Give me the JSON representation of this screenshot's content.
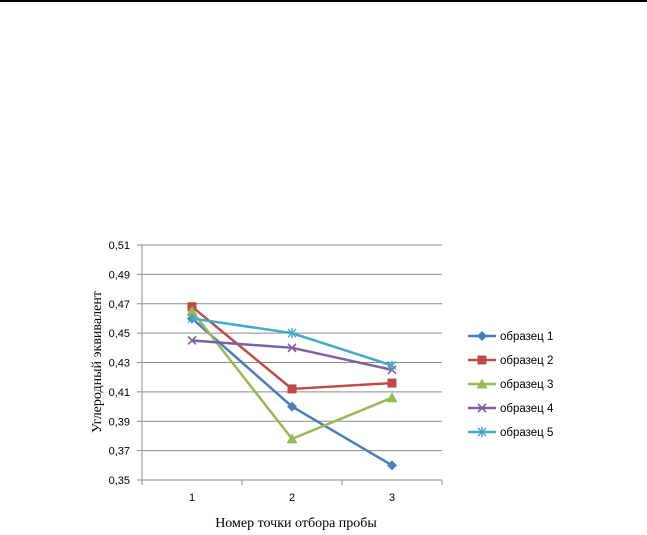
{
  "chart_data": {
    "type": "line",
    "title": "",
    "xlabel": "Номер точки отбора пробы",
    "ylabel": "Углеродный эквивалент",
    "categories": [
      "1",
      "2",
      "3"
    ],
    "ylim": [
      0.35,
      0.51
    ],
    "yticks": [
      "0,35",
      "0,37",
      "0,39",
      "0,41",
      "0,43",
      "0,45",
      "0,47",
      "0,49",
      "0,51"
    ],
    "grid": "horizontal",
    "legend_position": "right",
    "series": [
      {
        "name": "образец 1",
        "color": "#4a7ebb",
        "marker": "diamond",
        "values": [
          0.46,
          0.4,
          0.36
        ]
      },
      {
        "name": "образец 2",
        "color": "#be4b48",
        "marker": "square",
        "values": [
          0.468,
          0.412,
          0.416
        ]
      },
      {
        "name": "образец 3",
        "color": "#98b954",
        "marker": "triangle",
        "values": [
          0.465,
          0.378,
          0.406
        ]
      },
      {
        "name": "образец 4",
        "color": "#7d60a0",
        "marker": "x",
        "values": [
          0.445,
          0.44,
          0.425
        ]
      },
      {
        "name": "образец 5",
        "color": "#46aac5",
        "marker": "star",
        "values": [
          0.46,
          0.45,
          0.428
        ]
      }
    ]
  }
}
